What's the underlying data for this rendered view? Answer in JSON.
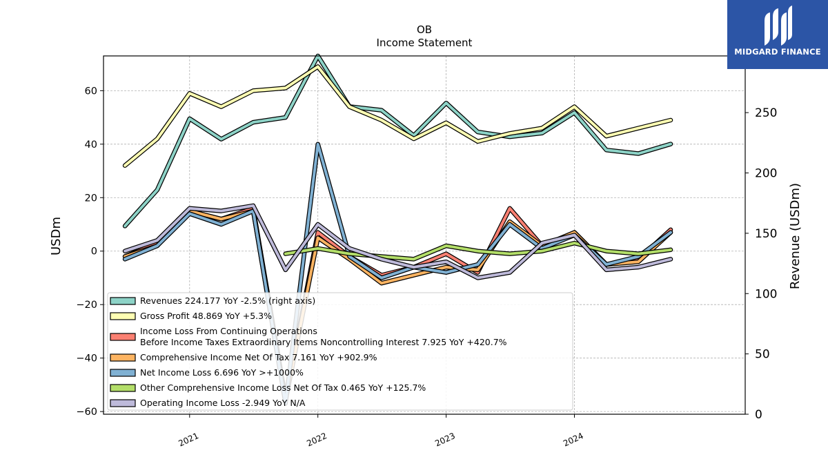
{
  "brand": {
    "name": "MIDGARD FINANCE",
    "background": "#2c55a6"
  },
  "chart_data": {
    "type": "line",
    "title": "OB",
    "subtitle": "Income Statement",
    "ylabel": "USDm",
    "ylabel_right": "Revenue (USDm)",
    "ylim": [
      -61,
      73
    ],
    "ylim_right": [
      0,
      297
    ],
    "yticks": [
      -60,
      -40,
      -20,
      0,
      20,
      40,
      60
    ],
    "yticks_right": [
      0,
      50,
      100,
      150,
      200,
      250
    ],
    "xlim": [
      "2020-05-01",
      "2025-05-01"
    ],
    "x_ticks": [
      "2021",
      "2022",
      "2023",
      "2024"
    ],
    "x": [
      "2020-07-01",
      "2020-10-01",
      "2021-01-01",
      "2021-04-01",
      "2021-07-01",
      "2021-10-01",
      "2022-01-01",
      "2022-04-01",
      "2022-07-01",
      "2022-10-01",
      "2023-01-01",
      "2023-04-01",
      "2023-07-01",
      "2023-10-01",
      "2024-01-01",
      "2024-04-01",
      "2024-07-01",
      "2024-10-01"
    ],
    "grid": true,
    "legend_position": "lower-left",
    "series": [
      {
        "name": "Revenues",
        "legend": "Revenues  224.177 YoY -2.5% (right axis)",
        "axis": "right",
        "color": "#8dd3c7",
        "values": [
          156,
          186,
          245,
          228,
          242,
          246,
          297,
          255,
          252,
          231,
          258,
          234,
          230,
          233,
          250,
          219,
          216,
          224
        ]
      },
      {
        "name": "Gross Profit",
        "legend": "Gross Profit  48.869 YoY +5.3%",
        "axis": "left",
        "color": "#ffffb3",
        "values": [
          32,
          42,
          59,
          54,
          60,
          61,
          69,
          54,
          49,
          42,
          48,
          41,
          44,
          46,
          54,
          43,
          46,
          49
        ]
      },
      {
        "name": "Income Loss From Continuing Operations Before Income Taxes Extraordinary Items Noncontrolling Interest",
        "legend": "Income Loss From Continuing Operations\nBefore Income Taxes Extraordinary Items Noncontrolling Interest  7.925 YoY +420.7%",
        "axis": "left",
        "color": "#fb8072",
        "values": [
          -2,
          3,
          15,
          12,
          16,
          -55,
          7,
          -2,
          -9,
          -6,
          -1,
          -8,
          16,
          2,
          7,
          -5,
          -3,
          8
        ]
      },
      {
        "name": "Comprehensive Income Net Of Tax",
        "legend": "Comprehensive Income Net Of Tax  7.161 YoY +902.9%",
        "axis": "left",
        "color": "#fdb462",
        "values": [
          -2,
          2,
          15,
          12,
          15,
          -56,
          5,
          -3,
          -12,
          -9,
          -6,
          -7,
          11,
          2,
          7,
          -5,
          -4,
          7
        ]
      },
      {
        "name": "Net Income Loss",
        "legend": "Net Income Loss  6.696 YoY >+1000%",
        "axis": "left",
        "color": "#80b1d3",
        "values": [
          -3,
          2,
          14,
          10,
          15,
          -57,
          40,
          -2,
          -10,
          -6,
          -8,
          -5,
          10,
          1,
          6,
          -5,
          -2,
          7
        ]
      },
      {
        "name": "Other Comprehensive Income Loss Net Of Tax",
        "legend": "Other Comprehensive Income Loss Net Of Tax  0.465 YoY +125.7%",
        "axis": "left",
        "color": "#b3de69",
        "values": [
          null,
          null,
          null,
          null,
          null,
          -1,
          1,
          -1,
          -2,
          -3,
          2,
          0,
          -1,
          0,
          3,
          0,
          -1,
          0.5
        ]
      },
      {
        "name": "Operating Income Loss",
        "legend": "Operating Income Loss  -2.949 YoY N/A",
        "axis": "left",
        "color": "#bebada",
        "values": [
          0,
          4,
          16,
          15,
          17,
          -7,
          10,
          1,
          -3,
          -6,
          -4,
          -10,
          -8,
          3,
          6,
          -7,
          -6,
          -3
        ]
      }
    ]
  }
}
